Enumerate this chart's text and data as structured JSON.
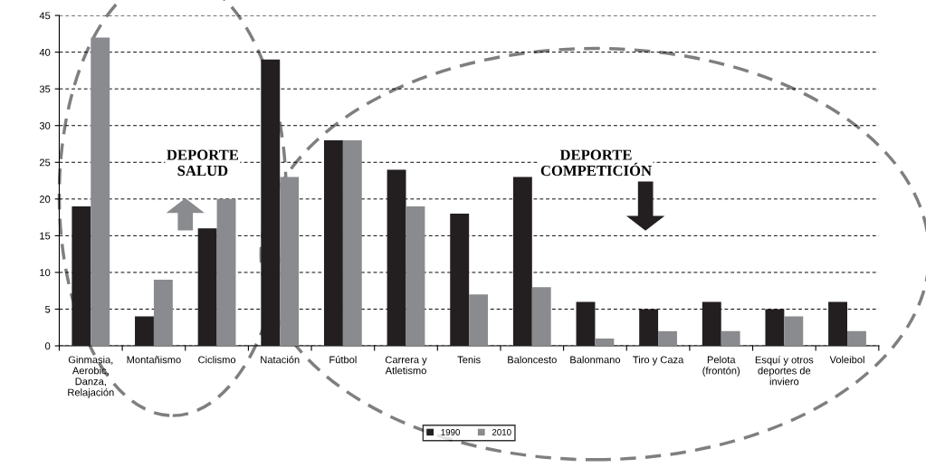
{
  "chart_data": {
    "type": "bar",
    "categories": [
      "Ginmasia,\nAerobic,\nDanza,\nRelajación",
      "Montañismo",
      "Ciclismo",
      "Natación",
      "Fútbol",
      "Carrera y\nAtletismo",
      "Tenis",
      "Baloncesto",
      "Balonmano",
      "Tiro y Caza",
      "Pelota\n(frontón)",
      "Esquí y otros\ndeportes de\ninviero",
      "Voleibol"
    ],
    "series": [
      {
        "name": "1990",
        "color": "#231f20",
        "values": [
          19,
          4,
          16,
          39,
          28,
          24,
          18,
          23,
          6,
          5,
          6,
          5,
          6
        ]
      },
      {
        "name": "2010",
        "color": "#8a8b8e",
        "values": [
          42,
          9,
          20,
          23,
          28,
          19,
          7,
          8,
          1,
          2,
          2,
          4,
          2
        ]
      }
    ],
    "ylim": [
      0,
      45
    ],
    "yticks": [
      0,
      5,
      10,
      15,
      20,
      25,
      30,
      35,
      40,
      45
    ],
    "grid": "y",
    "legend": "bottom",
    "annotations": [
      "DEPORTE\nSALUD",
      "DEPORTE\nCOMPETICIÓN"
    ]
  }
}
